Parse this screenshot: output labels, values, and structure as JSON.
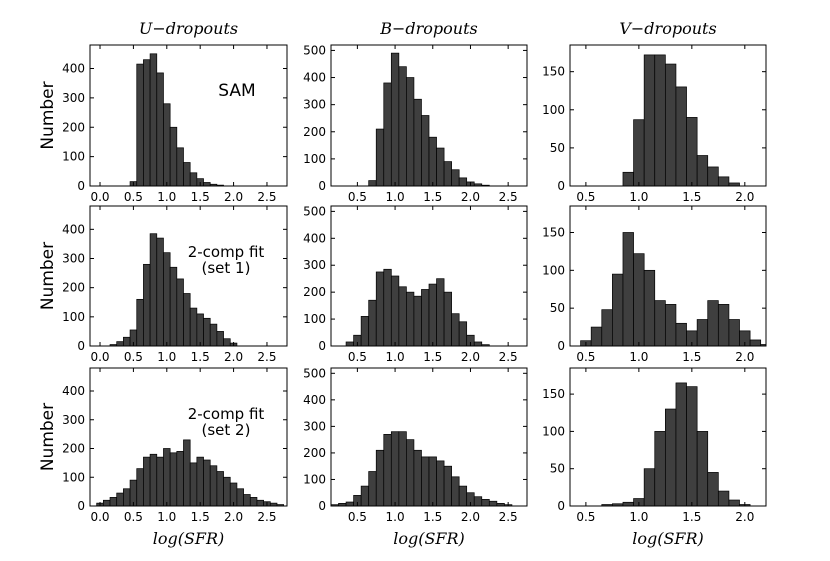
{
  "chart_data": [
    {
      "type": "bar",
      "row": 0,
      "col": 0,
      "title": "U−dropouts",
      "xlabel": "",
      "ylabel": "Number",
      "annotation": [
        "SAM"
      ],
      "xlim": [
        -0.15,
        2.8
      ],
      "ylim": [
        0,
        480
      ],
      "xticks": [
        "0.0",
        "0.5",
        "1.0",
        "1.5",
        "2.0",
        "2.5"
      ],
      "yticks": [
        "0",
        "100",
        "200",
        "300",
        "400"
      ],
      "bin_width": 0.1,
      "bin_start": 0.45,
      "values": [
        15,
        415,
        430,
        450,
        385,
        280,
        200,
        130,
        80,
        45,
        25,
        12,
        6,
        3
      ]
    },
    {
      "type": "bar",
      "row": 0,
      "col": 1,
      "title": "B−dropouts",
      "xlabel": "",
      "ylabel": "",
      "annotation": [],
      "xlim": [
        0.15,
        2.75
      ],
      "ylim": [
        0,
        520
      ],
      "xticks": [
        "0.5",
        "1.0",
        "1.5",
        "2.0",
        "2.5"
      ],
      "yticks": [
        "0",
        "100",
        "200",
        "300",
        "400",
        "500"
      ],
      "bin_width": 0.1,
      "bin_start": 0.65,
      "values": [
        20,
        210,
        380,
        490,
        440,
        400,
        320,
        260,
        180,
        140,
        90,
        60,
        30,
        15,
        8,
        3
      ]
    },
    {
      "type": "bar",
      "row": 0,
      "col": 2,
      "title": "V−dropouts",
      "xlabel": "",
      "ylabel": "",
      "annotation": [],
      "xlim": [
        0.35,
        2.2
      ],
      "ylim": [
        0,
        185
      ],
      "xticks": [
        "0.5",
        "1.0",
        "1.5",
        "2.0"
      ],
      "yticks": [
        "0",
        "50",
        "100",
        "150"
      ],
      "bin_width": 0.1,
      "bin_start": 0.85,
      "values": [
        18,
        87,
        172,
        172,
        160,
        130,
        90,
        40,
        25,
        12,
        4
      ]
    },
    {
      "type": "bar",
      "row": 1,
      "col": 0,
      "title": "",
      "xlabel": "",
      "ylabel": "Number",
      "annotation": [
        "2-comp fit",
        "(set 1)"
      ],
      "xlim": [
        -0.15,
        2.8
      ],
      "ylim": [
        0,
        480
      ],
      "xticks": [
        "0.0",
        "0.5",
        "1.0",
        "1.5",
        "2.0",
        "2.5"
      ],
      "yticks": [
        "0",
        "100",
        "200",
        "300",
        "400"
      ],
      "bin_width": 0.1,
      "bin_start": 0.15,
      "values": [
        5,
        15,
        30,
        55,
        160,
        280,
        385,
        370,
        320,
        270,
        230,
        180,
        130,
        110,
        95,
        75,
        50,
        25,
        10
      ]
    },
    {
      "type": "bar",
      "row": 1,
      "col": 1,
      "title": "",
      "xlabel": "",
      "ylabel": "",
      "annotation": [],
      "xlim": [
        0.15,
        2.75
      ],
      "ylim": [
        0,
        520
      ],
      "xticks": [
        "0.5",
        "1.0",
        "1.5",
        "2.0",
        "2.5"
      ],
      "yticks": [
        "0",
        "100",
        "200",
        "300",
        "400",
        "500"
      ],
      "bin_width": 0.1,
      "bin_start": 0.35,
      "values": [
        15,
        40,
        110,
        170,
        275,
        285,
        260,
        220,
        200,
        185,
        210,
        230,
        250,
        200,
        120,
        90,
        40,
        15,
        5
      ]
    },
    {
      "type": "bar",
      "row": 1,
      "col": 2,
      "title": "",
      "xlabel": "",
      "ylabel": "",
      "annotation": [],
      "xlim": [
        0.35,
        2.2
      ],
      "ylim": [
        0,
        185
      ],
      "xticks": [
        "0.5",
        "1.0",
        "1.5",
        "2.0"
      ],
      "yticks": [
        "0",
        "50",
        "100",
        "150"
      ],
      "bin_width": 0.1,
      "bin_start": 0.45,
      "values": [
        7,
        25,
        48,
        95,
        150,
        122,
        100,
        60,
        55,
        30,
        20,
        35,
        60,
        55,
        35,
        20,
        8,
        2
      ]
    },
    {
      "type": "bar",
      "row": 2,
      "col": 0,
      "title": "",
      "xlabel": "log(SFR)",
      "ylabel": "Number",
      "annotation": [
        "2-comp fit",
        "(set 2)"
      ],
      "xlim": [
        -0.15,
        2.8
      ],
      "ylim": [
        0,
        480
      ],
      "xticks": [
        "0.0",
        "0.5",
        "1.0",
        "1.5",
        "2.0",
        "2.5"
      ],
      "yticks": [
        "0",
        "100",
        "200",
        "300",
        "400"
      ],
      "bin_width": 0.1,
      "bin_start": -0.05,
      "values": [
        10,
        20,
        30,
        45,
        60,
        90,
        130,
        170,
        180,
        170,
        200,
        185,
        190,
        230,
        150,
        170,
        160,
        140,
        120,
        100,
        80,
        60,
        40,
        30,
        20,
        15,
        10,
        5
      ]
    },
    {
      "type": "bar",
      "row": 2,
      "col": 1,
      "title": "",
      "xlabel": "log(SFR)",
      "ylabel": "",
      "annotation": [],
      "xlim": [
        0.15,
        2.75
      ],
      "ylim": [
        0,
        520
      ],
      "xticks": [
        "0.5",
        "1.0",
        "1.5",
        "2.0",
        "2.5"
      ],
      "yticks": [
        "0",
        "100",
        "200",
        "300",
        "400",
        "500"
      ],
      "bin_width": 0.1,
      "bin_start": 0.15,
      "values": [
        5,
        10,
        15,
        40,
        75,
        130,
        210,
        270,
        280,
        280,
        250,
        210,
        185,
        185,
        170,
        150,
        110,
        75,
        50,
        35,
        25,
        18,
        10,
        5
      ]
    },
    {
      "type": "bar",
      "row": 2,
      "col": 2,
      "title": "",
      "xlabel": "log(SFR)",
      "ylabel": "",
      "annotation": [],
      "xlim": [
        0.35,
        2.2
      ],
      "ylim": [
        0,
        185
      ],
      "xticks": [
        "0.5",
        "1.0",
        "1.5",
        "2.0"
      ],
      "yticks": [
        "0",
        "50",
        "100",
        "150"
      ],
      "bin_width": 0.1,
      "bin_start": 0.65,
      "values": [
        2,
        3,
        5,
        10,
        50,
        100,
        130,
        165,
        160,
        100,
        45,
        20,
        8,
        2
      ]
    }
  ]
}
